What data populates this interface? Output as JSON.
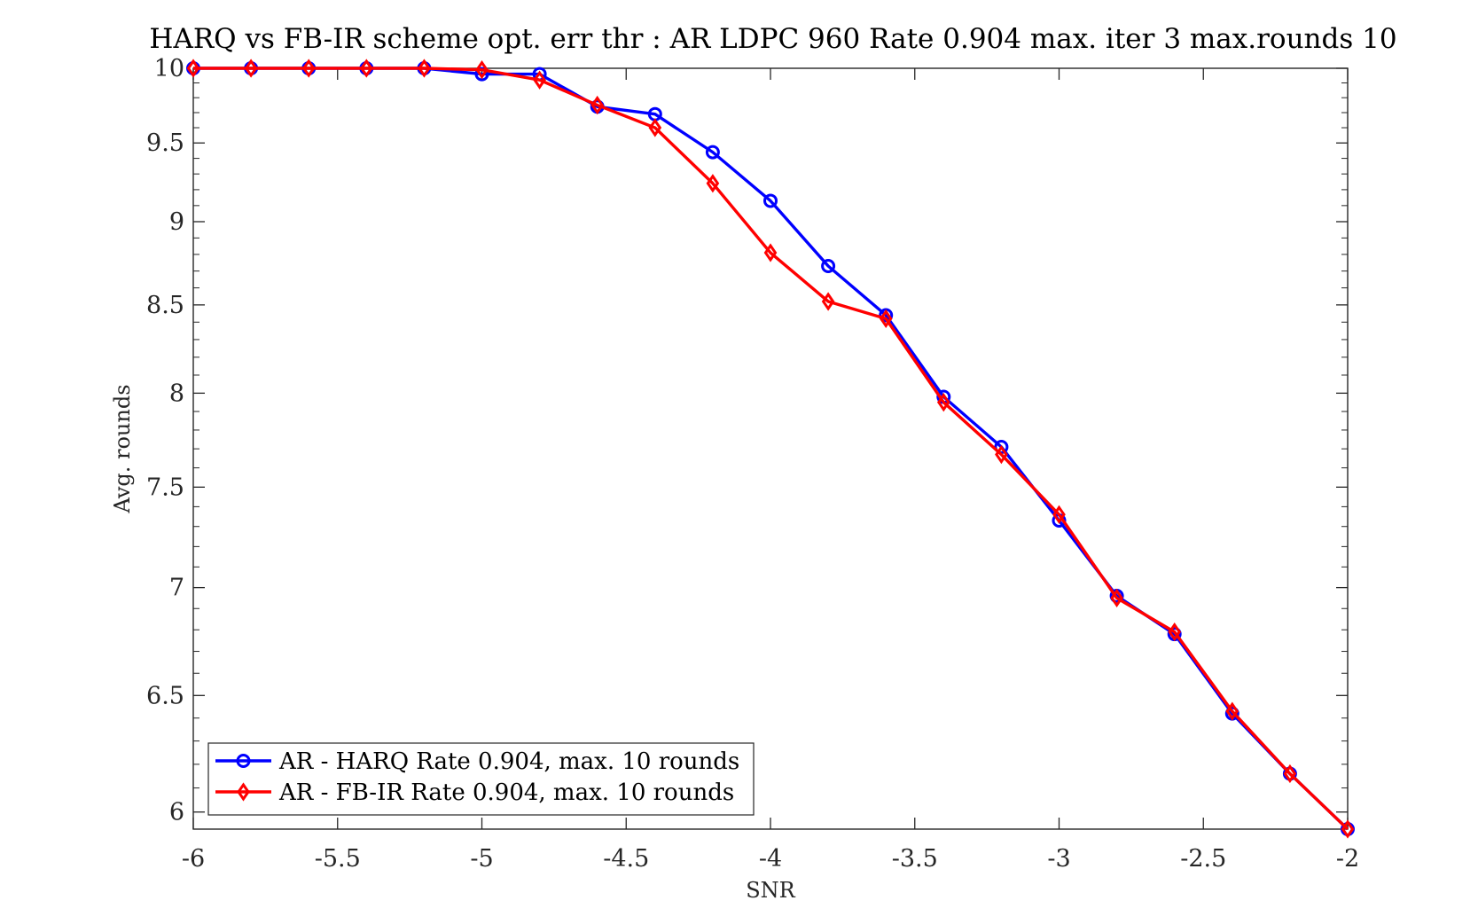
{
  "chart_data": {
    "type": "line",
    "title": "HARQ vs FB-IR scheme opt. err thr : AR LDPC 960 Rate 0.904 max. iter 3 max.rounds 10",
    "xlabel": "SNR",
    "ylabel": "Avg. rounds",
    "xlim": [
      -6,
      -2
    ],
    "ylim": [
      5.93,
      10
    ],
    "y_scale": "log",
    "x_ticks": [
      -6,
      -5.5,
      -5,
      -4.5,
      -4,
      -3.5,
      -3,
      -2.5,
      -2
    ],
    "x_tick_labels": [
      "-6",
      "-5.5",
      "-5",
      "-4.5",
      "-4",
      "-3.5",
      "-3",
      "-2.5",
      "-2"
    ],
    "y_ticks": [
      6,
      6.5,
      7,
      7.5,
      8,
      8.5,
      9,
      9.5,
      10
    ],
    "y_tick_labels": [
      "6",
      "6.5",
      "7",
      "7.5",
      "8",
      "8.5",
      "9",
      "9.5",
      "10"
    ],
    "grid": false,
    "legend_position": "bottom-left",
    "x": [
      -6,
      -5.8,
      -5.6,
      -5.4,
      -5.2,
      -5,
      -4.8,
      -4.6,
      -4.4,
      -4.2,
      -4,
      -3.8,
      -3.6,
      -3.4,
      -3.2,
      -3,
      -2.8,
      -2.6,
      -2.4,
      -2.2,
      -2
    ],
    "series": [
      {
        "name": "AR - HARQ Rate 0.904, max. 10 rounds",
        "color": "#0000ff",
        "marker": "circle",
        "values": [
          10,
          10,
          10,
          10,
          10,
          9.96,
          9.96,
          9.74,
          9.69,
          9.44,
          9.13,
          8.73,
          8.44,
          7.98,
          7.71,
          7.33,
          6.96,
          6.78,
          6.42,
          6.16,
          5.93
        ]
      },
      {
        "name": "AR - FB-IR Rate 0.904, max. 10 rounds",
        "color": "#ff0000",
        "marker": "diamond",
        "values": [
          10,
          10,
          10,
          10,
          10,
          9.99,
          9.92,
          9.75,
          9.6,
          9.24,
          8.81,
          8.52,
          8.42,
          7.95,
          7.67,
          7.36,
          6.95,
          6.79,
          6.43,
          6.16,
          5.93
        ]
      }
    ]
  }
}
